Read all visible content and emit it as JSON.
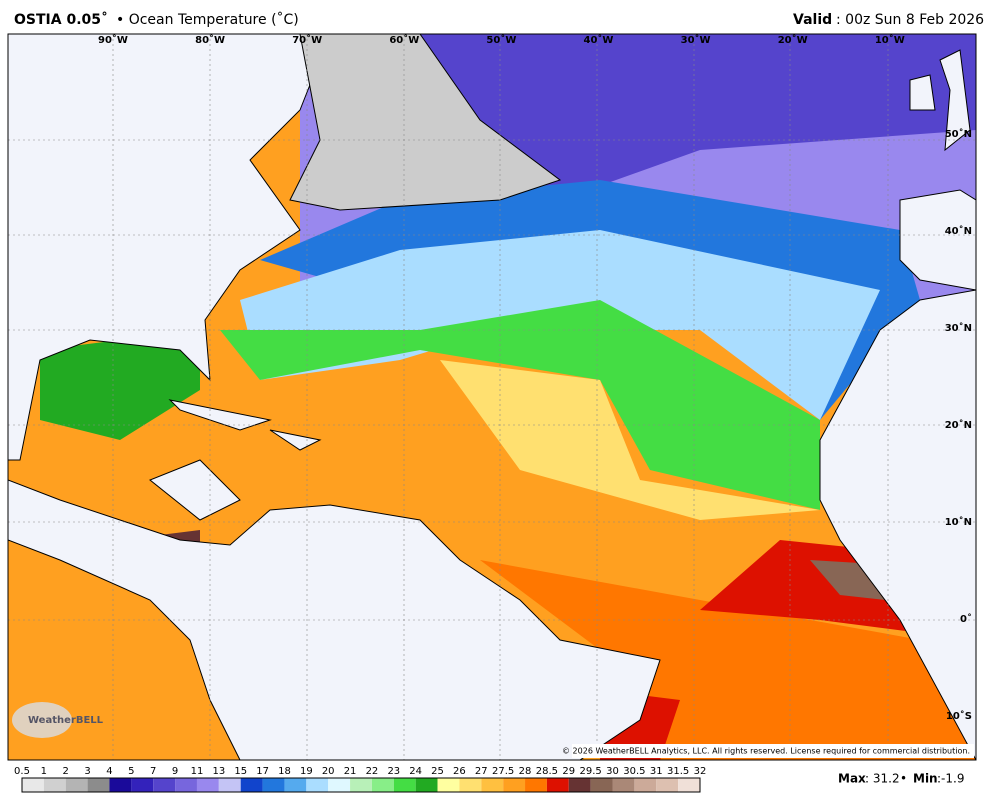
{
  "header": {
    "model": "OSTIA 0.05˚",
    "title": "• Ocean Temperature (˚C)",
    "valid_label": "Valid",
    "valid_time": ": 00z Sun 8 Feb 2026"
  },
  "map": {
    "lon_labels": [
      "90˚W",
      "80˚W",
      "70˚W",
      "60˚W",
      "50˚W",
      "40˚W",
      "30˚W",
      "20˚W",
      "10˚W"
    ],
    "lat_labels": [
      "50˚N",
      "40˚N",
      "30˚N",
      "20˚N",
      "10˚N",
      "0˚",
      "10˚S"
    ],
    "copyright": "© 2026 WeatherBELL Analytics, LLC. All rights reserved. License required for commercial distribution.",
    "logo": "WeatherBELL"
  },
  "legend": {
    "labels": [
      "0.5",
      "1",
      "2",
      "3",
      "4",
      "5",
      "7",
      "9",
      "11",
      "13",
      "15",
      "17",
      "18",
      "19",
      "20",
      "21",
      "22",
      "23",
      "24",
      "25",
      "26",
      "27",
      "27.5",
      "28",
      "28.5",
      "29",
      "29.5",
      "30",
      "30.5",
      "31",
      "31.5",
      "32"
    ],
    "colors": [
      "#e8e8e8",
      "#d0d0d0",
      "#b4b4b4",
      "#8c8c8c",
      "#1a0a9a",
      "#3322bb",
      "#5544cc",
      "#7766dd",
      "#9988ee",
      "#c4c4f5",
      "#1144cc",
      "#2277dd",
      "#55aaee",
      "#aaddff",
      "#dff8ff",
      "#b8f0b8",
      "#88ee88",
      "#44dd44",
      "#22aa22",
      "#ffffa0",
      "#ffe070",
      "#ffc040",
      "#ffa020",
      "#ff7700",
      "#dd1100",
      "#663333",
      "#886655",
      "#aa8877",
      "#ccaa99",
      "#ddc0b0",
      "#f0e0d8"
    ]
  },
  "stats": {
    "max_label": "Max",
    "max_value": ": 31.2",
    "sep": " • ",
    "min_label": "Min",
    "min_value": ":-1.9"
  }
}
